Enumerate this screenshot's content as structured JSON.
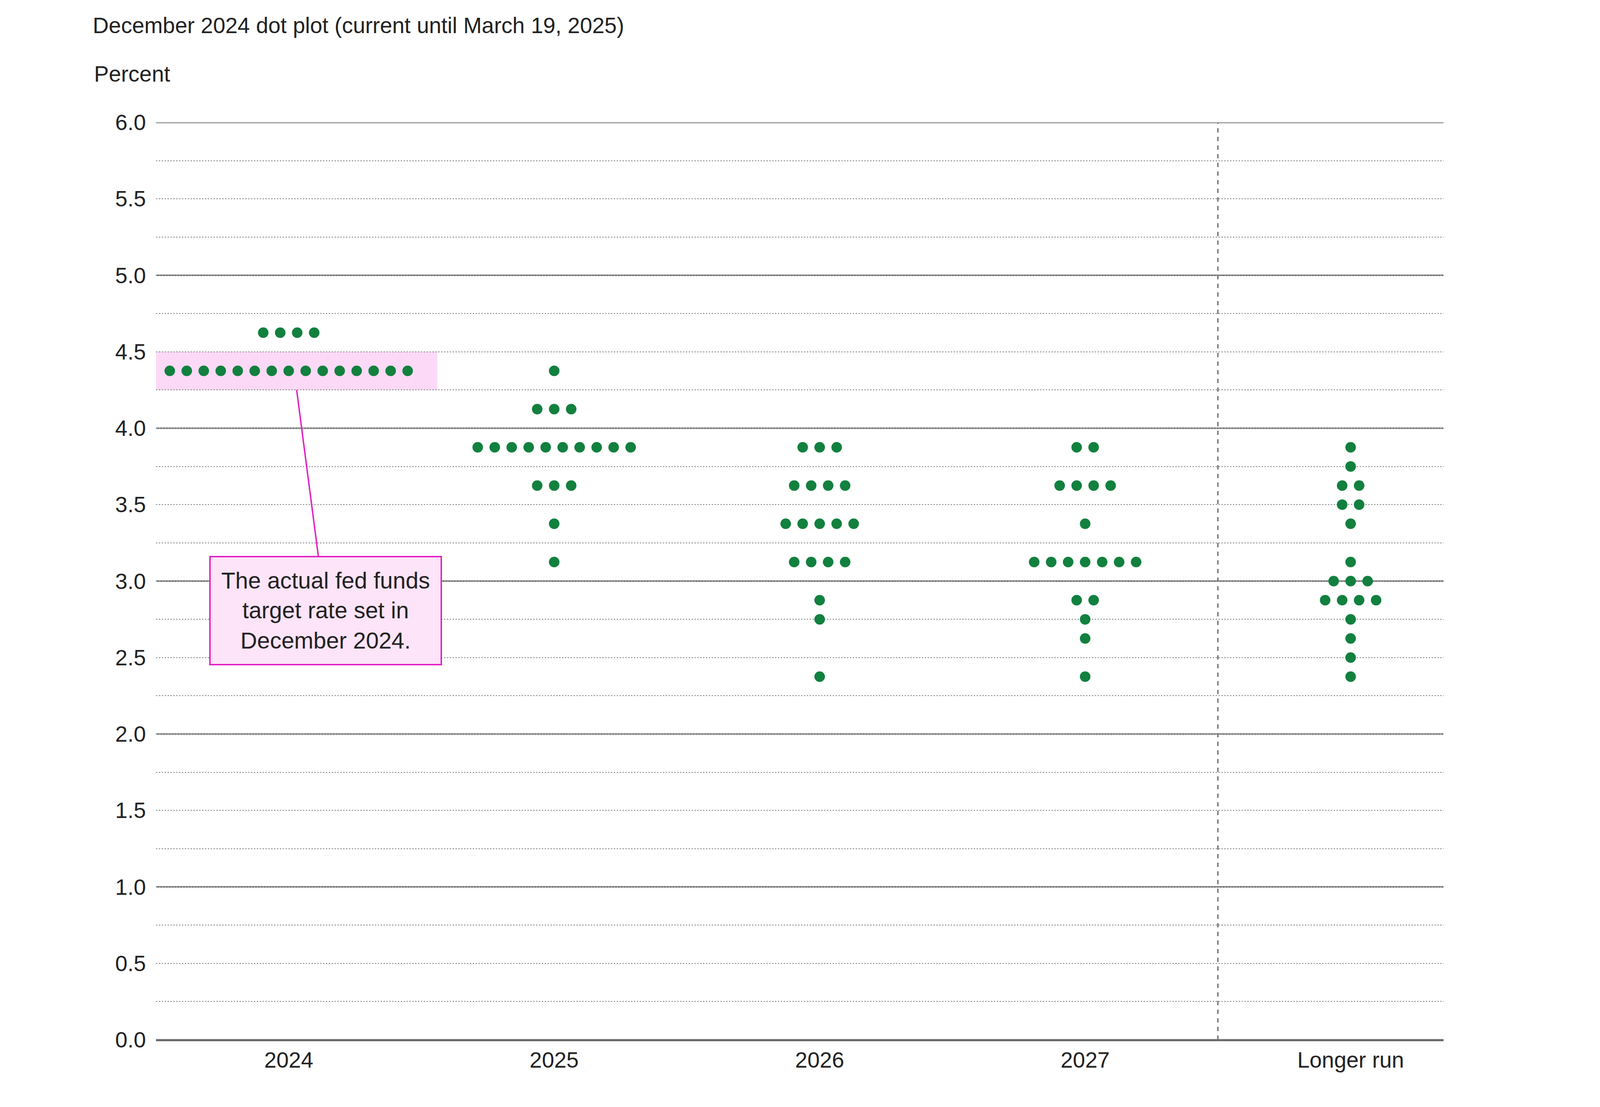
{
  "chart_data": {
    "type": "dot_plot",
    "title": "December 2024 dot plot (current until March 19, 2025)",
    "y_label": "Percent",
    "categories": [
      "2024",
      "2025",
      "2026",
      "2027",
      "Longer run"
    ],
    "values": [
      [
        4.625,
        4.625,
        4.625,
        4.625,
        4.375,
        4.375,
        4.375,
        4.375,
        4.375,
        4.375,
        4.375,
        4.375,
        4.375,
        4.375,
        4.375,
        4.375,
        4.375,
        4.375,
        4.375
      ],
      [
        4.375,
        4.125,
        4.125,
        4.125,
        3.875,
        3.875,
        3.875,
        3.875,
        3.875,
        3.875,
        3.875,
        3.875,
        3.875,
        3.875,
        3.625,
        3.625,
        3.625,
        3.375,
        3.125
      ],
      [
        3.875,
        3.875,
        3.875,
        3.625,
        3.625,
        3.625,
        3.625,
        3.375,
        3.375,
        3.375,
        3.375,
        3.375,
        3.125,
        3.125,
        3.125,
        3.125,
        2.875,
        2.75,
        2.375
      ],
      [
        3.875,
        3.875,
        3.625,
        3.625,
        3.625,
        3.625,
        3.375,
        3.125,
        3.125,
        3.125,
        3.125,
        3.125,
        3.125,
        3.125,
        2.875,
        2.875,
        2.75,
        2.625,
        2.375
      ],
      [
        3.875,
        3.75,
        3.625,
        3.625,
        3.5,
        3.5,
        3.375,
        3.125,
        3.0,
        3.0,
        3.0,
        2.875,
        2.875,
        2.875,
        2.875,
        2.75,
        2.625,
        2.5,
        2.375
      ]
    ],
    "color": "#12803e",
    "ylim": [
      0,
      6
    ],
    "yticks": [
      {
        "value": 0,
        "label": "0.0"
      },
      0.5,
      {
        "value": 1,
        "label": "1.0"
      },
      1.5,
      {
        "value": 2,
        "label": "2.0"
      },
      2.5,
      {
        "value": 3,
        "label": "3.0"
      },
      3.5,
      {
        "value": 4,
        "label": "4.0"
      },
      4.5,
      {
        "value": 5,
        "label": "5.0"
      },
      5.5,
      {
        "value": 6,
        "label": "6.0"
      }
    ],
    "grid": true,
    "annotations": [
      {
        "text": "The actual fed funds target rate set in December 2024.",
        "category": "2024",
        "value": 4.375
      }
    ]
  }
}
